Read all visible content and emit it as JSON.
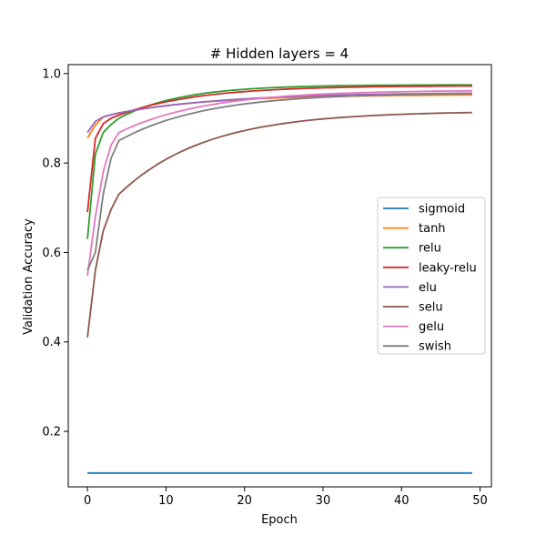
{
  "chart_data": {
    "type": "line",
    "title": "# Hidden layers = 4",
    "xlabel": "Epoch",
    "ylabel": "Validation Accuracy",
    "xlim": [
      -2.45,
      51.45
    ],
    "ylim": [
      0.076,
      1.02
    ],
    "xticks": [
      0,
      10,
      20,
      30,
      40,
      50
    ],
    "xtick_labels": [
      "0",
      "10",
      "20",
      "30",
      "40",
      "50"
    ],
    "yticks": [
      0.2,
      0.4,
      0.6,
      0.8,
      1.0
    ],
    "ytick_labels": [
      "0.2",
      "0.4",
      "0.6",
      "0.8",
      "1.0"
    ],
    "grid": false,
    "legend_position": "center-right",
    "series": [
      {
        "name": "sigmoid",
        "color": "#1f77b4",
        "start": [
          0.107,
          0.107,
          0.107,
          0.107,
          0.107
        ],
        "end": 0.107,
        "k": 3
      },
      {
        "name": "tanh",
        "color": "#ff7f0e",
        "start": [
          0.856,
          0.885,
          0.903,
          0.908,
          0.912
        ],
        "end": 0.953,
        "k": 12
      },
      {
        "name": "relu",
        "color": "#2ca02c",
        "start": [
          0.63,
          0.82,
          0.868,
          0.886,
          0.9
        ],
        "end": 0.975,
        "k": 8
      },
      {
        "name": "leaky-relu",
        "color": "#d62728",
        "start": [
          0.69,
          0.855,
          0.888,
          0.9,
          0.907
        ],
        "end": 0.973,
        "k": 10
      },
      {
        "name": "elu",
        "color": "#9467bd",
        "start": [
          0.868,
          0.893,
          0.903,
          0.908,
          0.912
        ],
        "end": 0.958,
        "k": 14
      },
      {
        "name": "selu",
        "color": "#8c564b",
        "start": [
          0.41,
          0.56,
          0.648,
          0.696,
          0.73
        ],
        "end": 0.916,
        "k": 11
      },
      {
        "name": "gelu",
        "color": "#e377c2",
        "start": [
          0.548,
          0.68,
          0.78,
          0.84,
          0.868
        ],
        "end": 0.963,
        "k": 11
      },
      {
        "name": "swish",
        "color": "#7f7f7f",
        "start": [
          0.56,
          0.6,
          0.73,
          0.81,
          0.85
        ],
        "end": 0.957,
        "k": 11
      }
    ]
  }
}
